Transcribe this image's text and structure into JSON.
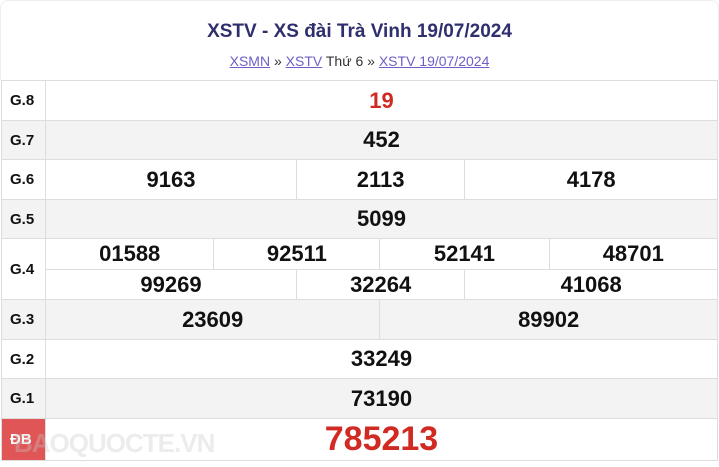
{
  "title": "XSTV - XS đài Trà Vinh 19/07/2024",
  "breadcrumb": {
    "link1": "XSMN",
    "sep1": " » ",
    "link2": "XSTV",
    "text": " Thứ 6",
    "sep2": " » ",
    "link3": "XSTV 19/07/2024"
  },
  "prizes": {
    "g8": {
      "label": "G.8",
      "values": [
        "19"
      ]
    },
    "g7": {
      "label": "G.7",
      "values": [
        "452"
      ]
    },
    "g6": {
      "label": "G.6",
      "values": [
        "9163",
        "2113",
        "4178"
      ]
    },
    "g5": {
      "label": "G.5",
      "values": [
        "5099"
      ]
    },
    "g4": {
      "label": "G.4",
      "values": [
        "01588",
        "92511",
        "52141",
        "48701",
        "99269",
        "32264",
        "41068"
      ]
    },
    "g3": {
      "label": "G.3",
      "values": [
        "23609",
        "89902"
      ]
    },
    "g2": {
      "label": "G.2",
      "values": [
        "33249"
      ]
    },
    "g1": {
      "label": "G.1",
      "values": [
        "73190"
      ]
    },
    "db": {
      "label": "ĐB",
      "values": [
        "785213"
      ]
    }
  },
  "watermark": "BAOQUOCTE.VN",
  "colors": {
    "title": "#2f2f6e",
    "accent": "#d12a22",
    "link": "#6c5fc7"
  }
}
